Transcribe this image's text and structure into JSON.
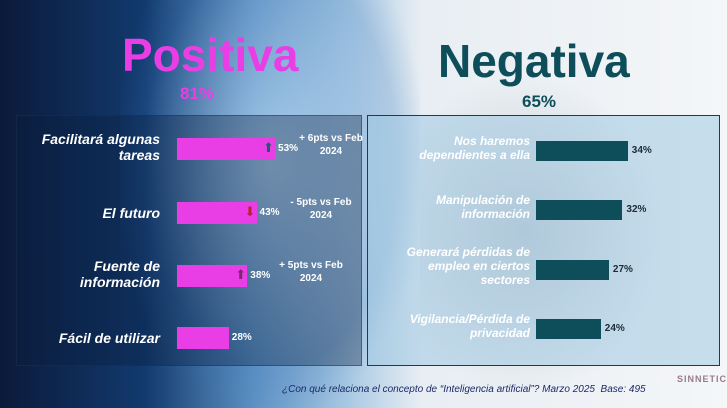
{
  "positive": {
    "title": "Positiva",
    "total": "81%",
    "color": "#e93ee6"
  },
  "negative": {
    "title": "Negativa",
    "total": "65%",
    "color": "#0e4d5a"
  },
  "chart_data": [
    {
      "type": "bar",
      "title": "Positiva",
      "categories": [
        "Facilitará algunas tareas",
        "El futuro",
        "Fuente de información",
        "Fácil de utilizar"
      ],
      "values": [
        53,
        43,
        38,
        28
      ],
      "value_labels": [
        "53%",
        "43%",
        "38%",
        "28%"
      ],
      "changes": [
        "+ 6pts vs Feb 2024",
        "- 5pts vs Feb 2024",
        "+ 5pts vs Feb 2024",
        null
      ],
      "change_dir": [
        "up",
        "down",
        "up",
        null
      ]
    },
    {
      "type": "bar",
      "title": "Negativa",
      "categories": [
        "Nos haremos dependientes a ella",
        "Manipulación de información",
        "Generará pérdidas de empleo en ciertos sectores",
        "Vigilancia/Pérdida de privacidad"
      ],
      "values": [
        34,
        32,
        27,
        24
      ],
      "value_labels": [
        "34%",
        "32%",
        "27%",
        "24%"
      ]
    }
  ],
  "footer": {
    "question": "¿Con qué relaciona el concepto de “Inteligencia artificial”?  Marzo 2025",
    "base": "Base: 495"
  },
  "logo": "SINNETIC"
}
